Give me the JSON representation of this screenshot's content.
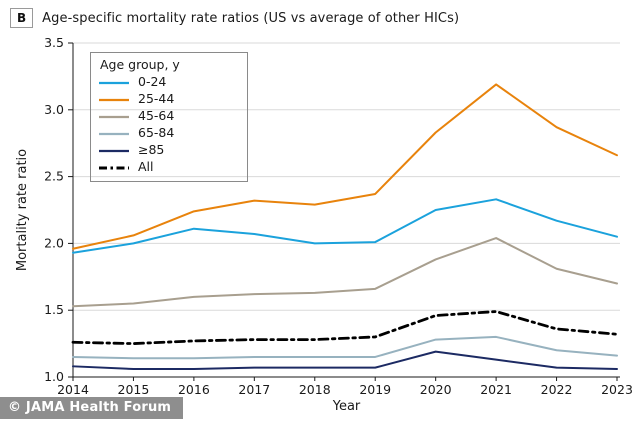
{
  "header": {
    "panel_label": "B",
    "title": "Age-specific mortality rate ratios (US vs average of other HICs)"
  },
  "footer": {
    "watermark": "© JAMA Health Forum"
  },
  "colors": {
    "grid": "#dadada",
    "axis": "#1a1a1a",
    "watermark_bg": "#8e8e8e",
    "watermark_text": "#ffffff"
  },
  "chart_data": {
    "type": "line",
    "title": "Age-specific mortality rate ratios (US vs average of other HICs)",
    "xlabel": "Year",
    "ylabel": "Mortality rate ratio",
    "xlim": [
      2014,
      2023
    ],
    "ylim": [
      1.0,
      3.5
    ],
    "yticks": [
      1.0,
      1.5,
      2.0,
      2.5,
      3.0,
      3.5
    ],
    "x": [
      2014,
      2015,
      2016,
      2017,
      2018,
      2019,
      2020,
      2021,
      2022,
      2023
    ],
    "grid": "horizontal",
    "legend_title": "Age group, y",
    "legend_position": "top-left-inside",
    "series": [
      {
        "name": "0-24",
        "color": "#1ba2dc",
        "style": "solid",
        "values": [
          1.93,
          2.0,
          2.11,
          2.07,
          2.0,
          2.01,
          2.25,
          2.33,
          2.17,
          2.05
        ]
      },
      {
        "name": "25-44",
        "color": "#e8830c",
        "style": "solid",
        "values": [
          1.96,
          2.06,
          2.24,
          2.32,
          2.29,
          2.37,
          2.83,
          3.19,
          2.87,
          2.66
        ]
      },
      {
        "name": "45-64",
        "color": "#a89f8f",
        "style": "solid",
        "values": [
          1.53,
          1.55,
          1.6,
          1.62,
          1.63,
          1.66,
          1.88,
          2.04,
          1.81,
          1.7
        ]
      },
      {
        "name": "65-84",
        "color": "#97b2bf",
        "style": "solid",
        "values": [
          1.15,
          1.14,
          1.14,
          1.15,
          1.15,
          1.15,
          1.28,
          1.3,
          1.2,
          1.16
        ]
      },
      {
        "name": "≥85",
        "color": "#1c2a63",
        "style": "solid",
        "values": [
          1.08,
          1.06,
          1.06,
          1.07,
          1.07,
          1.07,
          1.19,
          1.13,
          1.07,
          1.06
        ]
      },
      {
        "name": "All",
        "color": "#000000",
        "style": "dashdot",
        "values": [
          1.26,
          1.25,
          1.27,
          1.28,
          1.28,
          1.3,
          1.46,
          1.49,
          1.36,
          1.32
        ]
      }
    ]
  }
}
